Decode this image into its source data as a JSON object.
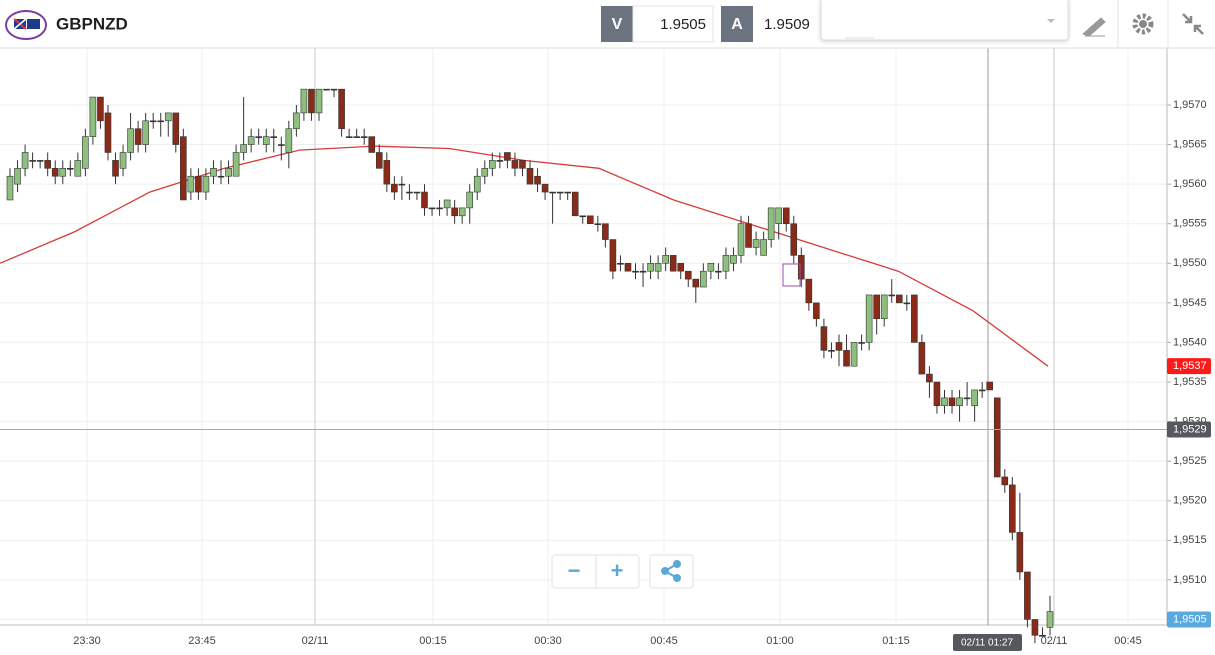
{
  "header": {
    "symbol": "GBPNZD",
    "bid_label": "V",
    "bid": 1.9505,
    "ask_label": "A",
    "ask": 1.9509
  },
  "controls": {
    "zoom_out": "−",
    "zoom_in": "+"
  },
  "chart_data": {
    "type": "candlestick",
    "xticks": [
      "23:30",
      "23:45",
      "02/11",
      "00:15",
      "00:30",
      "00:45",
      "01:00",
      "01:15",
      "02/11",
      "00:45"
    ],
    "ylim": [
      1.95043,
      1.95772
    ],
    "yticks": [
      {
        "value": 1.9505,
        "label": "1,9505"
      },
      {
        "value": 1.951,
        "label": "1,9510"
      },
      {
        "value": 1.9515,
        "label": "1,9515"
      },
      {
        "value": 1.952,
        "label": "1,9520"
      },
      {
        "value": 1.9525,
        "label": "1,9525"
      },
      {
        "value": 1.953,
        "label": "1,9530"
      },
      {
        "value": 1.9535,
        "label": "1,9535"
      },
      {
        "value": 1.954,
        "label": "1,9540"
      },
      {
        "value": 1.9545,
        "label": "1,9545"
      },
      {
        "value": 1.955,
        "label": "1,9550"
      },
      {
        "value": 1.9555,
        "label": "1,9555"
      },
      {
        "value": 1.956,
        "label": "1,9560"
      },
      {
        "value": 1.9565,
        "label": "1,9565"
      },
      {
        "value": 1.957,
        "label": "1,9570"
      }
    ],
    "up_color": "#8fbf7f",
    "down_color": "#8a2a18",
    "candles": [
      [
        1.9558,
        1.9562,
        1.9558,
        1.9561
      ],
      [
        1.956,
        1.9563,
        1.9559,
        1.9562
      ],
      [
        1.9562,
        1.9565,
        1.9561,
        1.9564
      ],
      [
        1.9563,
        1.9564,
        1.9562,
        1.9563
      ],
      [
        1.9563,
        1.9563,
        1.9562,
        1.9563
      ],
      [
        1.9563,
        1.9564,
        1.9561,
        1.9562
      ],
      [
        1.9562,
        1.9563,
        1.956,
        1.9561
      ],
      [
        1.9561,
        1.9563,
        1.956,
        1.9562
      ],
      [
        1.9562,
        1.9563,
        1.9561,
        1.9562
      ],
      [
        1.9561,
        1.9564,
        1.9561,
        1.9563
      ],
      [
        1.9562,
        1.9567,
        1.9561,
        1.9566
      ],
      [
        1.9566,
        1.9571,
        1.9565,
        1.9571
      ],
      [
        1.9571,
        1.9571,
        1.9567,
        1.9568
      ],
      [
        1.9569,
        1.957,
        1.9563,
        1.9564
      ],
      [
        1.9563,
        1.9564,
        1.956,
        1.9561
      ],
      [
        1.9562,
        1.9565,
        1.9561,
        1.9564
      ],
      [
        1.9564,
        1.9569,
        1.9563,
        1.9567
      ],
      [
        1.9567,
        1.9568,
        1.9564,
        1.9565
      ],
      [
        1.9565,
        1.9569,
        1.9564,
        1.9568
      ],
      [
        1.9568,
        1.9569,
        1.9567,
        1.9568
      ],
      [
        1.9568,
        1.9569,
        1.9566,
        1.9568
      ],
      [
        1.9568,
        1.9569,
        1.9566,
        1.9569
      ],
      [
        1.9569,
        1.9569,
        1.9564,
        1.9565
      ],
      [
        1.9566,
        1.9567,
        1.9558,
        1.9558
      ],
      [
        1.9559,
        1.9562,
        1.9558,
        1.9561
      ],
      [
        1.9561,
        1.9562,
        1.9558,
        1.9559
      ],
      [
        1.9559,
        1.9562,
        1.9558,
        1.9561
      ],
      [
        1.9561,
        1.9563,
        1.956,
        1.9562
      ],
      [
        1.9561,
        1.9563,
        1.956,
        1.9561
      ],
      [
        1.9561,
        1.9563,
        1.956,
        1.9562
      ],
      [
        1.9561,
        1.9565,
        1.9561,
        1.9564
      ],
      [
        1.9564,
        1.9571,
        1.9563,
        1.9565
      ],
      [
        1.9565,
        1.9567,
        1.9564,
        1.9566
      ],
      [
        1.9566,
        1.9567,
        1.9565,
        1.9566
      ],
      [
        1.9565,
        1.9567,
        1.9564,
        1.9566
      ],
      [
        1.9566,
        1.9567,
        1.9564,
        1.9566
      ],
      [
        1.9565,
        1.9566,
        1.9563,
        1.9565
      ],
      [
        1.9564,
        1.9568,
        1.9562,
        1.9567
      ],
      [
        1.9567,
        1.957,
        1.9566,
        1.9569
      ],
      [
        1.9569,
        1.9572,
        1.9568,
        1.9572
      ],
      [
        1.9572,
        1.9572,
        1.9568,
        1.9569
      ],
      [
        1.9569,
        1.9572,
        1.9568,
        1.9572
      ],
      [
        1.9572,
        1.9572,
        1.9572,
        1.9572
      ],
      [
        1.9572,
        1.9572,
        1.9571,
        1.9572
      ],
      [
        1.9572,
        1.9572,
        1.9566,
        1.9567
      ],
      [
        1.9566,
        1.9567,
        1.9566,
        1.9566
      ],
      [
        1.9566,
        1.9567,
        1.9566,
        1.9566
      ],
      [
        1.9566,
        1.9567,
        1.9565,
        1.9566
      ],
      [
        1.9566,
        1.9566,
        1.9564,
        1.9564
      ],
      [
        1.9564,
        1.9565,
        1.9562,
        1.9562
      ],
      [
        1.9563,
        1.9564,
        1.9559,
        1.956
      ],
      [
        1.956,
        1.9561,
        1.9558,
        1.9559
      ],
      [
        1.956,
        1.9561,
        1.9558,
        1.956
      ],
      [
        1.9559,
        1.956,
        1.9558,
        1.9559
      ],
      [
        1.9559,
        1.9559,
        1.9558,
        1.9559
      ],
      [
        1.9559,
        1.956,
        1.9556,
        1.9557
      ],
      [
        1.9557,
        1.9557,
        1.9556,
        1.9557
      ],
      [
        1.9557,
        1.9558,
        1.9556,
        1.9557
      ],
      [
        1.9557,
        1.9558,
        1.9556,
        1.9558
      ],
      [
        1.9557,
        1.9558,
        1.9555,
        1.9556
      ],
      [
        1.9556,
        1.9557,
        1.9555,
        1.9557
      ],
      [
        1.9557,
        1.956,
        1.9555,
        1.9559
      ],
      [
        1.9559,
        1.9562,
        1.9558,
        1.9561
      ],
      [
        1.9561,
        1.9563,
        1.956,
        1.9562
      ],
      [
        1.9562,
        1.9564,
        1.9561,
        1.9563
      ],
      [
        1.9563,
        1.9564,
        1.9562,
        1.9563
      ],
      [
        1.9564,
        1.9564,
        1.9562,
        1.9563
      ],
      [
        1.9563,
        1.9564,
        1.9561,
        1.9562
      ],
      [
        1.9563,
        1.9563,
        1.9561,
        1.9562
      ],
      [
        1.9562,
        1.9563,
        1.956,
        1.956
      ],
      [
        1.9561,
        1.9562,
        1.9559,
        1.956
      ],
      [
        1.956,
        1.956,
        1.9558,
        1.9559
      ],
      [
        1.9559,
        1.9559,
        1.9555,
        1.9559
      ],
      [
        1.9559,
        1.9559,
        1.9558,
        1.9559
      ],
      [
        1.9559,
        1.9559,
        1.9558,
        1.9559
      ],
      [
        1.9559,
        1.9559,
        1.9556,
        1.9556
      ],
      [
        1.9556,
        1.9556,
        1.9555,
        1.9556
      ],
      [
        1.9556,
        1.9556,
        1.9555,
        1.9555
      ],
      [
        1.9555,
        1.9556,
        1.9554,
        1.9555
      ],
      [
        1.9555,
        1.9555,
        1.9552,
        1.9553
      ],
      [
        1.9553,
        1.9553,
        1.9548,
        1.9549
      ],
      [
        1.955,
        1.9551,
        1.9549,
        1.955
      ],
      [
        1.955,
        1.955,
        1.9549,
        1.9549
      ],
      [
        1.9549,
        1.955,
        1.9548,
        1.9549
      ],
      [
        1.9549,
        1.955,
        1.9547,
        1.9549
      ],
      [
        1.9549,
        1.9551,
        1.9548,
        1.955
      ],
      [
        1.9549,
        1.9551,
        1.9548,
        1.955
      ],
      [
        1.955,
        1.9552,
        1.9549,
        1.9551
      ],
      [
        1.9551,
        1.9551,
        1.9549,
        1.9549
      ],
      [
        1.955,
        1.955,
        1.9548,
        1.9549
      ],
      [
        1.9549,
        1.9549,
        1.9547,
        1.9548
      ],
      [
        1.9548,
        1.9548,
        1.9545,
        1.9547
      ],
      [
        1.9547,
        1.955,
        1.9547,
        1.9549
      ],
      [
        1.9549,
        1.955,
        1.9548,
        1.955
      ],
      [
        1.9549,
        1.955,
        1.9548,
        1.9549
      ],
      [
        1.9549,
        1.9552,
        1.9548,
        1.9551
      ],
      [
        1.955,
        1.9552,
        1.9549,
        1.9551
      ],
      [
        1.9551,
        1.9556,
        1.955,
        1.9555
      ],
      [
        1.9555,
        1.9556,
        1.9552,
        1.9552
      ],
      [
        1.9552,
        1.9554,
        1.9551,
        1.9553
      ],
      [
        1.9551,
        1.9554,
        1.9551,
        1.9553
      ],
      [
        1.9553,
        1.9557,
        1.9552,
        1.9557
      ],
      [
        1.9555,
        1.9557,
        1.9553,
        1.9557
      ],
      [
        1.9557,
        1.9557,
        1.9554,
        1.9555
      ],
      [
        1.9555,
        1.9556,
        1.955,
        1.9551
      ],
      [
        1.9551,
        1.9552,
        1.9547,
        1.9548
      ],
      [
        1.9548,
        1.9548,
        1.9544,
        1.9545
      ],
      [
        1.9545,
        1.9545,
        1.9542,
        1.9543
      ],
      [
        1.9542,
        1.9543,
        1.9538,
        1.9539
      ],
      [
        1.9539,
        1.954,
        1.9538,
        1.9539
      ],
      [
        1.954,
        1.9541,
        1.9537,
        1.9539
      ],
      [
        1.9539,
        1.9541,
        1.9537,
        1.9537
      ],
      [
        1.9537,
        1.954,
        1.9537,
        1.954
      ],
      [
        1.954,
        1.9541,
        1.9539,
        1.954
      ],
      [
        1.954,
        1.9546,
        1.9539,
        1.9546
      ],
      [
        1.9546,
        1.9546,
        1.9541,
        1.9543
      ],
      [
        1.9543,
        1.9546,
        1.9542,
        1.9546
      ],
      [
        1.9546,
        1.9548,
        1.9545,
        1.9546
      ],
      [
        1.9546,
        1.9546,
        1.9545,
        1.9545
      ],
      [
        1.9545,
        1.9546,
        1.9544,
        1.9545
      ],
      [
        1.9546,
        1.9546,
        1.954,
        1.954
      ],
      [
        1.954,
        1.9541,
        1.9536,
        1.9536
      ],
      [
        1.9536,
        1.9537,
        1.9533,
        1.9535
      ],
      [
        1.9535,
        1.9535,
        1.9531,
        1.9532
      ],
      [
        1.9532,
        1.9534,
        1.9531,
        1.9533
      ],
      [
        1.9533,
        1.9534,
        1.9531,
        1.9532
      ],
      [
        1.9532,
        1.9534,
        1.953,
        1.9533
      ],
      [
        1.9533,
        1.9535,
        1.9532,
        1.9533
      ],
      [
        1.9532,
        1.9534,
        1.953,
        1.9534
      ],
      [
        1.9534,
        1.9535,
        1.9533,
        1.9534
      ],
      [
        1.9535,
        1.9535,
        1.9534,
        1.9534
      ],
      [
        1.9533,
        1.9533,
        1.9523,
        1.9523
      ],
      [
        1.9523,
        1.9524,
        1.9521,
        1.9522
      ],
      [
        1.9522,
        1.9523,
        1.9515,
        1.9516
      ],
      [
        1.9516,
        1.9521,
        1.951,
        1.9511
      ],
      [
        1.9511,
        1.9511,
        1.9504,
        1.9505
      ],
      [
        1.9505,
        1.9505,
        1.9502,
        1.9503
      ],
      [
        1.9503,
        1.9504,
        1.9503,
        1.9503
      ],
      [
        1.9504,
        1.9508,
        1.9503,
        1.9506
      ]
    ],
    "moving_average": {
      "color": "#d93a3a",
      "values": [
        1.955,
        1.9554,
        1.9559,
        1.9562,
        1.95643,
        1.95648,
        1.95645,
        1.9563,
        1.9562,
        1.9558,
        1.9555,
        1.9552,
        1.9549,
        1.9544,
        1.9537
      ]
    },
    "price_markers": [
      {
        "value": 1.9537,
        "label": "1,9537",
        "color": "#ff1a1a"
      },
      {
        "value": 1.9529,
        "label": "1,9529",
        "color": "#55595e"
      },
      {
        "value": 1.9505,
        "label": "1,9505",
        "color": "#5aa8e0"
      }
    ],
    "crosshair_label": "02/11 01:27"
  }
}
